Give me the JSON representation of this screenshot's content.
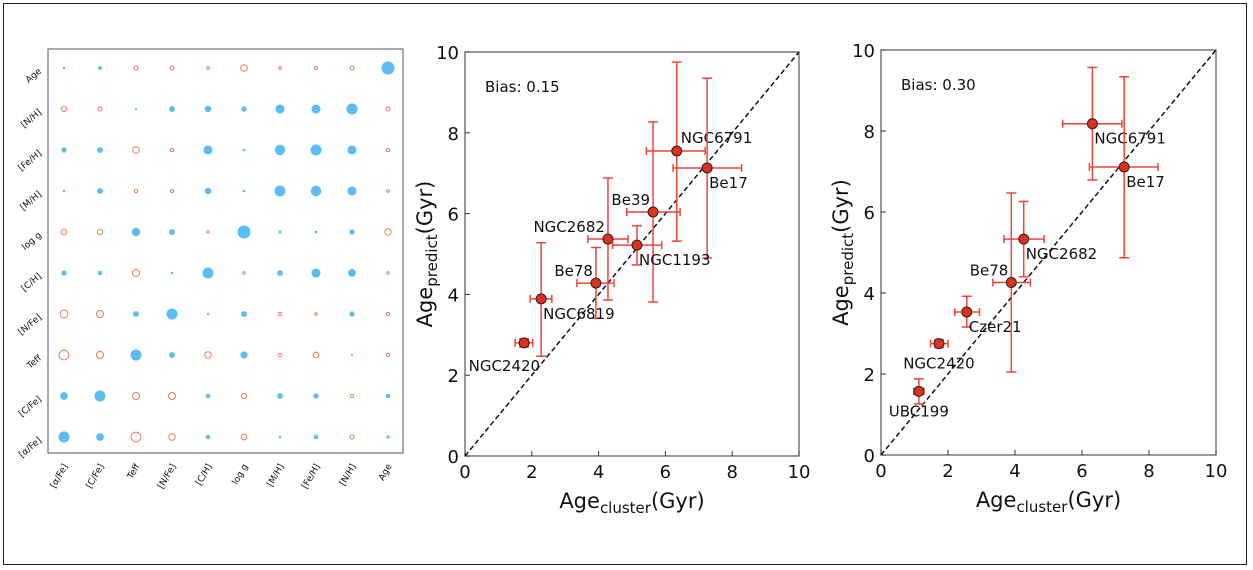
{
  "chart_data": [
    {
      "type": "heatmap",
      "title": "",
      "style": "circle size = |correlation|, filled blue = positive, hollow orange = negative",
      "x_labels": [
        "[α/Fe]",
        "[C/Fe]",
        "Teff",
        "[N/Fe]",
        "[C/H]",
        "log g",
        "[M/H]",
        "[Fe/H]",
        "[N/H]",
        "Age"
      ],
      "y_labels": [
        "Age",
        "[N/H]",
        "[Fe/H]",
        "[M/H]",
        "log g",
        "[C/H]",
        "[N/Fe]",
        "Teff",
        "[C/Fe]",
        "[α/Fe]"
      ],
      "values": [
        [
          0.2,
          0.3,
          -0.3,
          -0.3,
          -0.1,
          -0.5,
          -0.2,
          -0.25,
          -0.3,
          1.0
        ],
        [
          -0.4,
          -0.3,
          0.15,
          0.45,
          0.5,
          0.4,
          0.7,
          0.7,
          0.85,
          -0.3
        ],
        [
          0.4,
          0.45,
          -0.5,
          -0.25,
          0.7,
          0.2,
          0.8,
          0.85,
          0.7,
          -0.25
        ],
        [
          0.2,
          0.45,
          -0.25,
          -0.25,
          0.5,
          0.2,
          0.85,
          0.8,
          0.7,
          -0.2
        ],
        [
          -0.45,
          -0.4,
          0.65,
          0.45,
          -0.15,
          1.0,
          0.25,
          0.2,
          0.4,
          -0.5
        ],
        [
          0.4,
          0.35,
          -0.55,
          0.1,
          0.85,
          -0.15,
          0.45,
          0.7,
          0.6,
          -0.1
        ],
        [
          -0.6,
          -0.55,
          0.45,
          0.85,
          0.1,
          0.45,
          -0.25,
          -0.2,
          0.4,
          -0.25
        ],
        [
          -0.75,
          -0.55,
          0.85,
          0.45,
          -0.5,
          0.55,
          -0.25,
          -0.45,
          0.15,
          -0.25
        ],
        [
          0.6,
          0.85,
          -0.55,
          -0.55,
          0.35,
          -0.4,
          0.45,
          0.4,
          -0.25,
          0.35
        ],
        [
          0.85,
          0.6,
          -0.75,
          -0.5,
          0.35,
          -0.45,
          0.2,
          0.35,
          -0.3,
          0.25
        ]
      ],
      "colors": {
        "positive": "#5bbef2",
        "negative": "#ee7a55"
      }
    },
    {
      "type": "scatter",
      "annotation": "Bias: 0.15",
      "xlabel": "Age",
      "xlabel_sub": "cluster",
      "xlabel_unit": "(Gyr)",
      "ylabel": "Age",
      "ylabel_sub": "predict",
      "ylabel_unit": "(Gyr)",
      "xlim": [
        0,
        10
      ],
      "ylim": [
        0,
        10
      ],
      "xticks": [
        "0",
        "2",
        "4",
        "6",
        "8",
        "10"
      ],
      "yticks": [
        "0",
        "2",
        "4",
        "6",
        "8",
        "10"
      ],
      "reference_line": "y = x (dashed)",
      "points": [
        {
          "label": "NGC6791",
          "x": 6.34,
          "y": 7.55,
          "xerr": [
            5.43,
            7.19
          ],
          "yerr": [
            5.32,
            9.75
          ],
          "label_pos": "ne"
        },
        {
          "label": "Be17",
          "x": 7.25,
          "y": 7.13,
          "xerr": [
            6.23,
            8.28
          ],
          "yerr": [
            4.9,
            9.35
          ],
          "label_pos": "se"
        },
        {
          "label": "Be39",
          "x": 5.63,
          "y": 6.04,
          "xerr": [
            4.84,
            6.44
          ],
          "yerr": [
            3.81,
            8.27
          ],
          "label_pos": "nw"
        },
        {
          "label": "NGC2682",
          "x": 4.28,
          "y": 5.37,
          "xerr": [
            3.68,
            4.88
          ],
          "yerr": [
            3.86,
            6.88
          ],
          "label_pos": "nw"
        },
        {
          "label": "NGC1193",
          "x": 5.15,
          "y": 5.22,
          "xerr": [
            4.42,
            5.89
          ],
          "yerr": [
            4.73,
            5.7
          ],
          "label_pos": "se"
        },
        {
          "label": "Be78",
          "x": 3.92,
          "y": 4.28,
          "xerr": [
            3.35,
            4.46
          ],
          "yerr": [
            3.41,
            5.16
          ],
          "label_pos": "nw"
        },
        {
          "label": "NGC6819",
          "x": 2.28,
          "y": 3.89,
          "xerr": [
            1.95,
            2.6
          ],
          "yerr": [
            2.47,
            5.28
          ],
          "label_pos": "se"
        },
        {
          "label": "NGC2420",
          "x": 1.77,
          "y": 2.8,
          "xerr": [
            1.5,
            2.03
          ],
          "yerr": [
            2.7,
            2.9
          ],
          "label_pos": "sw"
        }
      ]
    },
    {
      "type": "scatter",
      "annotation": "Bias: 0.30",
      "xlabel": "Age",
      "xlabel_sub": "cluster",
      "xlabel_unit": "(Gyr)",
      "ylabel": "Age",
      "ylabel_sub": "predict",
      "ylabel_unit": "(Gyr)",
      "xlim": [
        0,
        10
      ],
      "ylim": [
        0,
        10
      ],
      "xticks": [
        "0",
        "2",
        "4",
        "6",
        "8",
        "10"
      ],
      "yticks": [
        "0",
        "2",
        "4",
        "6",
        "8",
        "10"
      ],
      "reference_line": "y = x (dashed)",
      "points": [
        {
          "label": "NGC6791",
          "x": 6.31,
          "y": 8.18,
          "xerr": [
            5.42,
            7.19
          ],
          "yerr": [
            6.79,
            9.57
          ],
          "label_pos": "se"
        },
        {
          "label": "Be17",
          "x": 7.26,
          "y": 7.11,
          "xerr": [
            6.22,
            8.27
          ],
          "yerr": [
            4.87,
            9.34
          ],
          "label_pos": "se"
        },
        {
          "label": "NGC2682",
          "x": 4.26,
          "y": 5.33,
          "xerr": [
            3.67,
            4.87
          ],
          "yerr": [
            4.4,
            6.26
          ],
          "label_pos": "se"
        },
        {
          "label": "Be78",
          "x": 3.89,
          "y": 4.26,
          "xerr": [
            3.34,
            4.46
          ],
          "yerr": [
            2.05,
            6.47
          ],
          "label_pos": "nw"
        },
        {
          "label": "Czer21",
          "x": 2.56,
          "y": 3.53,
          "xerr": [
            2.2,
            2.94
          ],
          "yerr": [
            3.16,
            3.92
          ],
          "label_pos": "se"
        },
        {
          "label": "NGC2420",
          "x": 1.73,
          "y": 2.75,
          "xerr": [
            1.48,
            2.0
          ],
          "yerr": [
            2.65,
            2.85
          ],
          "label_pos": "s"
        },
        {
          "label": "UBC199",
          "x": 1.13,
          "y": 1.57,
          "xerr": [
            0.98,
            1.28
          ],
          "yerr": [
            1.26,
            1.88
          ],
          "label_pos": "s"
        }
      ],
      "colors": {
        "point": "#e0301e",
        "errorbar": "#f0443a"
      }
    }
  ]
}
